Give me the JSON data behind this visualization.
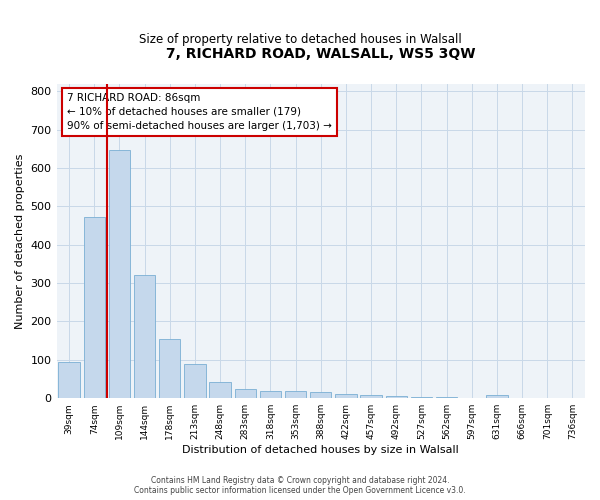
{
  "title": "7, RICHARD ROAD, WALSALL, WS5 3QW",
  "subtitle": "Size of property relative to detached houses in Walsall",
  "xlabel": "Distribution of detached houses by size in Walsall",
  "ylabel": "Number of detached properties",
  "footer_line1": "Contains HM Land Registry data © Crown copyright and database right 2024.",
  "footer_line2": "Contains public sector information licensed under the Open Government Licence v3.0.",
  "bar_color": "#c5d8ec",
  "bar_edge_color": "#7aafd4",
  "grid_color": "#c8d8e8",
  "background_color": "#eef3f8",
  "annotation_box_color": "#cc0000",
  "vline_color": "#cc0000",
  "categories": [
    "39sqm",
    "74sqm",
    "109sqm",
    "144sqm",
    "178sqm",
    "213sqm",
    "248sqm",
    "283sqm",
    "318sqm",
    "353sqm",
    "388sqm",
    "422sqm",
    "457sqm",
    "492sqm",
    "527sqm",
    "562sqm",
    "597sqm",
    "631sqm",
    "666sqm",
    "701sqm",
    "736sqm"
  ],
  "values": [
    95,
    472,
    648,
    320,
    155,
    88,
    43,
    25,
    20,
    18,
    15,
    12,
    8,
    6,
    4,
    2,
    1,
    8,
    1,
    1,
    0
  ],
  "vline_position": 1.5,
  "annotation_line1": "7 RICHARD ROAD: 86sqm",
  "annotation_line2": "← 10% of detached houses are smaller (179)",
  "annotation_line3": "90% of semi-detached houses are larger (1,703) →",
  "ylim": [
    0,
    820
  ],
  "yticks": [
    0,
    100,
    200,
    300,
    400,
    500,
    600,
    700,
    800
  ]
}
